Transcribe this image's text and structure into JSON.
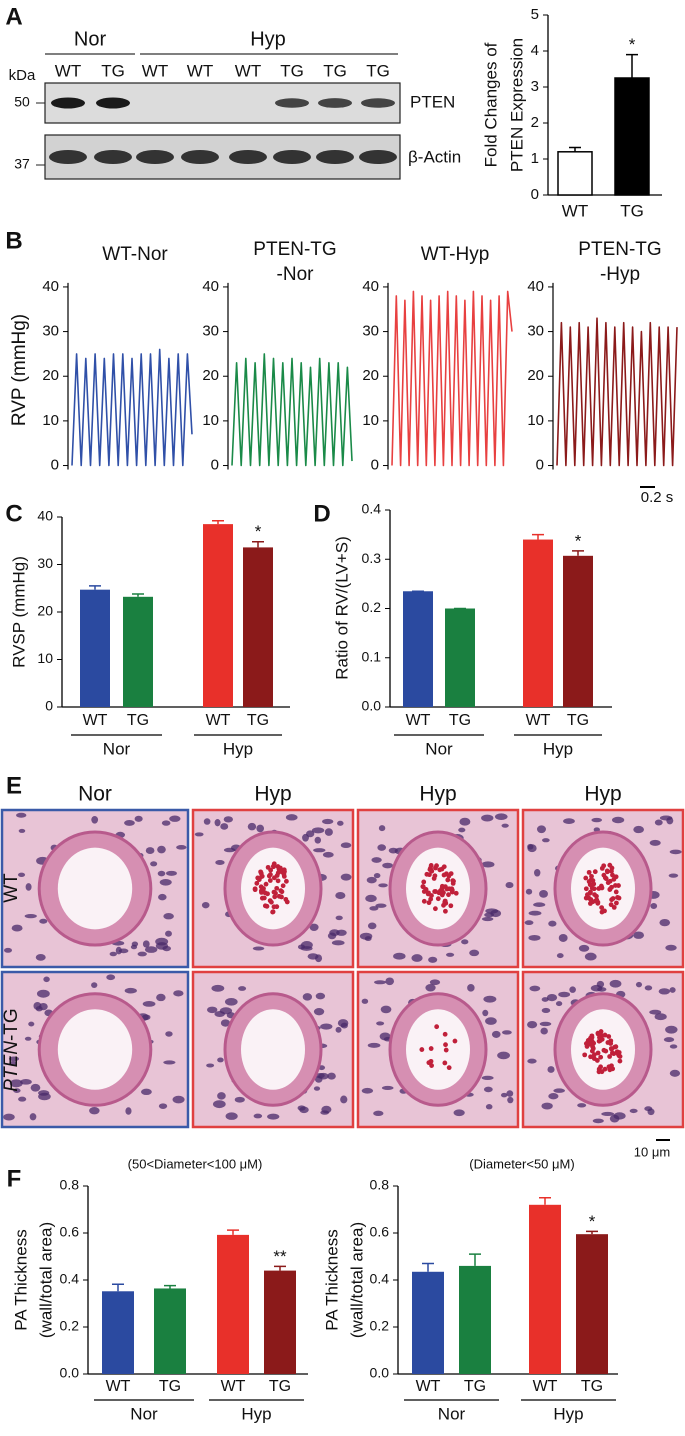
{
  "labels": {
    "panels": [
      "A",
      "B",
      "C",
      "D",
      "E",
      "F"
    ],
    "b_scale": "0.2 s"
  },
  "blot": {
    "groups": [
      {
        "label": "Nor",
        "color": "#3a5aa8"
      },
      {
        "label": "Hyp",
        "color": "#d03030"
      }
    ],
    "lanes": [
      {
        "label": "WT",
        "color": "#2a7ab8"
      },
      {
        "label": "TG",
        "color": "#d03030"
      },
      {
        "label": "WT",
        "color": "#2a7ab8"
      },
      {
        "label": "WT",
        "color": "#2a7ab8"
      },
      {
        "label": "WT",
        "color": "#2a7ab8"
      },
      {
        "label": "TG",
        "color": "#d03030"
      },
      {
        "label": "TG",
        "color": "#d03030"
      },
      {
        "label": "TG",
        "color": "#d03030"
      }
    ],
    "unit": "kDa",
    "markers": [
      50,
      37
    ],
    "proteins": [
      "PTEN",
      "β-Actin"
    ]
  },
  "histology": {
    "columns": [
      {
        "label": "Nor",
        "color": "#3a5aa8"
      },
      {
        "label": "Hyp",
        "color": "#e04040"
      },
      {
        "label": "Hyp",
        "color": "#e04040"
      },
      {
        "label": "Hyp",
        "color": "#e04040"
      }
    ],
    "rows": [
      "WT",
      [
        "PTEN",
        "-TG"
      ]
    ],
    "scale": "10 μm"
  },
  "chart_data": [
    {
      "type": "bar",
      "ylabel": [
        "Fold Changes of",
        "PTEN  Expression"
      ],
      "categories": [
        "WT",
        "TG"
      ],
      "values": [
        1.2,
        3.25
      ],
      "errors": [
        0.12,
        0.65
      ],
      "colors": [
        "#ffffff",
        "#000000"
      ],
      "significance": [
        null,
        "*"
      ],
      "ylim": [
        0,
        5
      ],
      "yticks": [
        0,
        1,
        2,
        3,
        4,
        5
      ]
    },
    {
      "type": "line",
      "title": [
        "WT-Nor"
      ],
      "ylabel": "RVP (mmHg)",
      "color": "#3050a8",
      "values": [
        0,
        25,
        0,
        24,
        0,
        25,
        0,
        24,
        0,
        25,
        0,
        25,
        0,
        24,
        0,
        25,
        0,
        25,
        0,
        26,
        0,
        24,
        0,
        25,
        0,
        25,
        7
      ],
      "ylim": [
        -1,
        42
      ],
      "yticks": [
        0,
        10,
        20,
        30,
        40
      ]
    },
    {
      "type": "line",
      "title": [
        "PTEN-TG",
        "-Nor"
      ],
      "color": "#1a8a48",
      "values": [
        0,
        23,
        0,
        24,
        0,
        23,
        0,
        25,
        0,
        24,
        0,
        23,
        0,
        24,
        0,
        23,
        0,
        22,
        0,
        24,
        0,
        23,
        0,
        23,
        0,
        22,
        1
      ],
      "ylim": [
        -1,
        42
      ],
      "yticks": [
        0,
        10,
        20,
        30,
        40
      ]
    },
    {
      "type": "line",
      "title": [
        "WT-Hyp"
      ],
      "color": "#e84040",
      "values": [
        0,
        38,
        0,
        37,
        0,
        39,
        0,
        38,
        0,
        37,
        0,
        38,
        0,
        39,
        0,
        38,
        0,
        37,
        0,
        39,
        0,
        38,
        0,
        37,
        0,
        38,
        0,
        39,
        30
      ],
      "ylim": [
        -1,
        42
      ],
      "yticks": [
        0,
        10,
        20,
        30,
        40
      ]
    },
    {
      "type": "line",
      "title": [
        "PTEN-TG",
        "-Hyp"
      ],
      "color": "#8b1a1a",
      "values": [
        0,
        32,
        0,
        31,
        0,
        32,
        0,
        31,
        0,
        33,
        0,
        32,
        0,
        31,
        0,
        32,
        0,
        31,
        0,
        30,
        0,
        32,
        0,
        31,
        0,
        31,
        0,
        31
      ],
      "ylim": [
        -1,
        42
      ],
      "yticks": [
        0,
        10,
        20,
        30,
        40
      ]
    },
    {
      "type": "bar",
      "ylabel": [
        "RVSP (mmHg)"
      ],
      "categories": [
        "WT",
        "TG",
        "WT",
        "TG"
      ],
      "groups": [
        "Nor",
        "Hyp"
      ],
      "values": [
        24.7,
        23.2,
        38.5,
        33.6
      ],
      "errors": [
        0.8,
        0.6,
        0.7,
        1.2
      ],
      "colors": [
        "#2b4aa0",
        "#1a8040",
        "#e8302a",
        "#8b1a1a"
      ],
      "significance": [
        null,
        null,
        null,
        "*"
      ],
      "ylim": [
        0,
        40
      ],
      "yticks": [
        0,
        10,
        20,
        30,
        40
      ]
    },
    {
      "type": "bar",
      "ylabel": [
        "Ratio of RV/(LV+S)"
      ],
      "categories": [
        "WT",
        "TG",
        "WT",
        "TG"
      ],
      "groups": [
        "Nor",
        "Hyp"
      ],
      "values": [
        0.235,
        0.2,
        0.34,
        0.307
      ],
      "errors": [
        0,
        0,
        0.01,
        0.01
      ],
      "colors": [
        "#2b4aa0",
        "#1a8040",
        "#e8302a",
        "#8b1a1a"
      ],
      "significance": [
        null,
        null,
        null,
        "*"
      ],
      "ylim": [
        0,
        0.4
      ],
      "yticks": [
        {
          "value": 0,
          "label": "0.0"
        },
        0.1,
        0.2,
        0.3,
        0.4
      ]
    },
    {
      "type": "bar",
      "subtitle": "(50<Diameter<100 μM)",
      "ylabel": [
        "PA Thickness",
        "(wall/total area)"
      ],
      "categories": [
        "WT",
        "TG",
        "WT",
        "TG"
      ],
      "groups": [
        "Nor",
        "Hyp"
      ],
      "values": [
        0.352,
        0.364,
        0.592,
        0.44
      ],
      "errors": [
        0.03,
        0.012,
        0.02,
        0.018
      ],
      "colors": [
        "#2b4aa0",
        "#1a8040",
        "#e8302a",
        "#8b1a1a"
      ],
      "significance": [
        null,
        null,
        null,
        "**"
      ],
      "ylim": [
        0,
        0.8
      ],
      "yticks": [
        {
          "value": 0,
          "label": "0.0"
        },
        0.2,
        0.4,
        0.6,
        0.8
      ]
    },
    {
      "type": "bar",
      "subtitle": "(Diameter<50 μM)",
      "ylabel": [
        "PA Thickness",
        "(wall/total area)"
      ],
      "categories": [
        "WT",
        "TG",
        "WT",
        "TG"
      ],
      "groups": [
        "Nor",
        "Hyp"
      ],
      "values": [
        0.435,
        0.46,
        0.72,
        0.595
      ],
      "errors": [
        0.035,
        0.05,
        0.03,
        0.012
      ],
      "colors": [
        "#2b4aa0",
        "#1a8040",
        "#e8302a",
        "#8b1a1a"
      ],
      "significance": [
        null,
        null,
        null,
        "*"
      ],
      "ylim": [
        0,
        0.8
      ],
      "yticks": [
        {
          "value": 0,
          "label": "0.0"
        },
        0.2,
        0.4,
        0.6,
        0.8
      ]
    }
  ]
}
